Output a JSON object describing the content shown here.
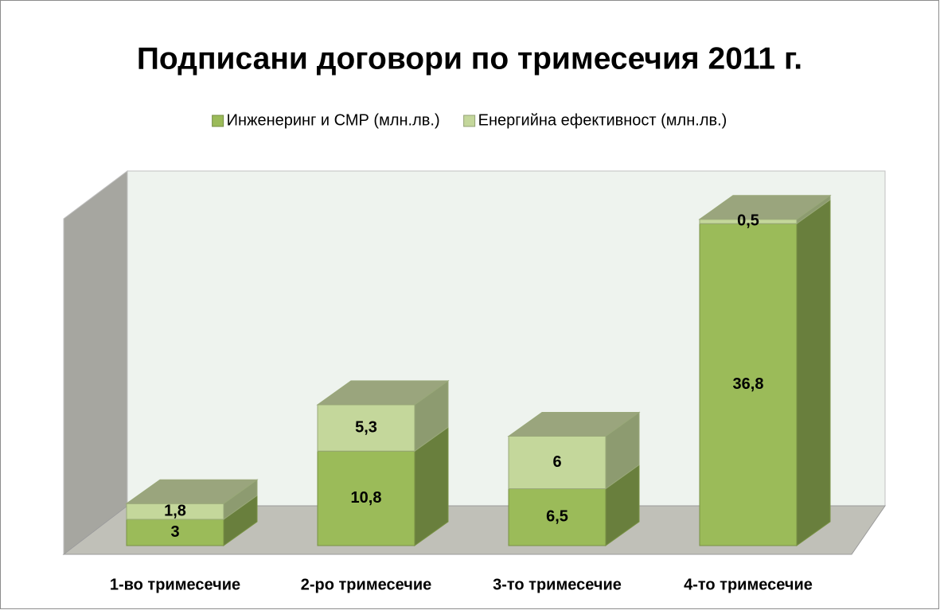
{
  "chart_data": {
    "type": "bar3d_stacked",
    "title": "Подписани договори по тримесечия 2011 г.",
    "categories": [
      "1-во тримесечие",
      "2-ро тримесечие",
      "3-то тримесечие",
      "4-то тримесечие"
    ],
    "series": [
      {
        "name": "Инженеринг и СМР (млн.лв.)",
        "color": "#9bbb59",
        "values": [
          3,
          10.8,
          6.5,
          36.8
        ],
        "value_labels": [
          "3",
          "10,8",
          "6,5",
          "36,8"
        ]
      },
      {
        "name": "Енергийна ефективност (млн.лв.)",
        "color": "#c4d79b",
        "values": [
          1.8,
          5.3,
          6,
          0.5
        ],
        "value_labels": [
          "1,8",
          "5,3",
          "6",
          "0,5"
        ]
      }
    ],
    "ylim": [
      0,
      40
    ],
    "legend": "top"
  }
}
